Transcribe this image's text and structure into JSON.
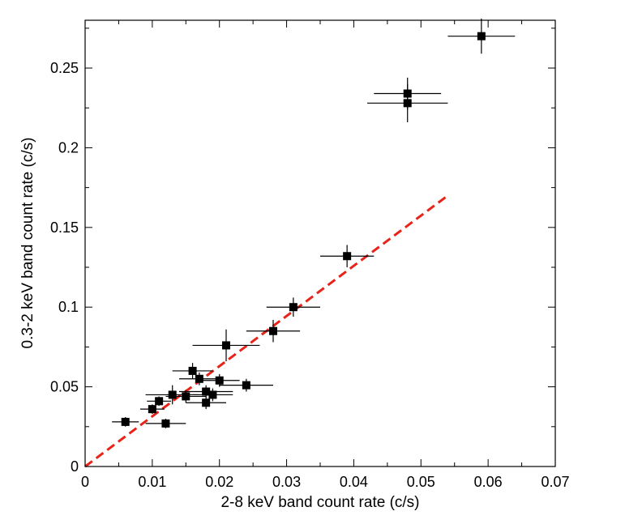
{
  "chart_data": {
    "type": "scatter",
    "title": "",
    "xlabel": "2-8 keV band count rate (c/s)",
    "ylabel": "0.3-2 keV band count rate (c/s)",
    "xlim": [
      0,
      0.07
    ],
    "ylim": [
      0,
      0.28
    ],
    "x_ticks": [
      {
        "value": 0,
        "label": "0"
      },
      {
        "value": 0.01,
        "label": "0.01"
      },
      {
        "value": 0.02,
        "label": "0.02"
      },
      {
        "value": 0.03,
        "label": "0.03"
      },
      {
        "value": 0.04,
        "label": "0.04"
      },
      {
        "value": 0.05,
        "label": "0.05"
      },
      {
        "value": 0.06,
        "label": "0.06"
      },
      {
        "value": 0.07,
        "label": "0.07"
      }
    ],
    "y_ticks": [
      {
        "value": 0,
        "label": "0"
      },
      {
        "value": 0.05,
        "label": "0.05"
      },
      {
        "value": 0.1,
        "label": "0.1"
      },
      {
        "value": 0.15,
        "label": "0.15"
      },
      {
        "value": 0.2,
        "label": "0.2"
      },
      {
        "value": 0.25,
        "label": "0.25"
      }
    ],
    "x_minor_step": 0.005,
    "y_minor_step": 0.025,
    "grid": false,
    "legend": "none",
    "marker_color": "#000000",
    "points": [
      {
        "x": 0.006,
        "y": 0.028,
        "xerr": 0.002,
        "yerr": 0.003
      },
      {
        "x": 0.01,
        "y": 0.036,
        "xerr": 0.0018,
        "yerr": 0.003
      },
      {
        "x": 0.011,
        "y": 0.041,
        "xerr": 0.0018,
        "yerr": 0.003
      },
      {
        "x": 0.012,
        "y": 0.027,
        "xerr": 0.003,
        "yerr": 0.003
      },
      {
        "x": 0.013,
        "y": 0.045,
        "xerr": 0.004,
        "yerr": 0.006
      },
      {
        "x": 0.015,
        "y": 0.044,
        "xerr": 0.003,
        "yerr": 0.004
      },
      {
        "x": 0.016,
        "y": 0.06,
        "xerr": 0.003,
        "yerr": 0.005
      },
      {
        "x": 0.017,
        "y": 0.055,
        "xerr": 0.003,
        "yerr": 0.004
      },
      {
        "x": 0.018,
        "y": 0.047,
        "xerr": 0.004,
        "yerr": 0.004
      },
      {
        "x": 0.018,
        "y": 0.04,
        "xerr": 0.003,
        "yerr": 0.004
      },
      {
        "x": 0.019,
        "y": 0.045,
        "xerr": 0.003,
        "yerr": 0.004
      },
      {
        "x": 0.02,
        "y": 0.054,
        "xerr": 0.003,
        "yerr": 0.004
      },
      {
        "x": 0.021,
        "y": 0.076,
        "xerr": 0.005,
        "yerr": 0.01
      },
      {
        "x": 0.024,
        "y": 0.051,
        "xerr": 0.004,
        "yerr": 0.004
      },
      {
        "x": 0.028,
        "y": 0.085,
        "xerr": 0.004,
        "yerr": 0.007
      },
      {
        "x": 0.031,
        "y": 0.1,
        "xerr": 0.004,
        "yerr": 0.006
      },
      {
        "x": 0.039,
        "y": 0.132,
        "xerr": 0.004,
        "yerr": 0.007
      },
      {
        "x": 0.048,
        "y": 0.234,
        "xerr": 0.005,
        "yerr": 0.01
      },
      {
        "x": 0.048,
        "y": 0.228,
        "xerr": 0.006,
        "yerr": 0.012
      },
      {
        "x": 0.059,
        "y": 0.27,
        "xerr": 0.005,
        "yerr": 0.011
      }
    ],
    "fit_line": {
      "style": "dashed",
      "color": "#e8231a",
      "from": [
        0,
        0
      ],
      "to": [
        0.054,
        0.17
      ]
    }
  }
}
